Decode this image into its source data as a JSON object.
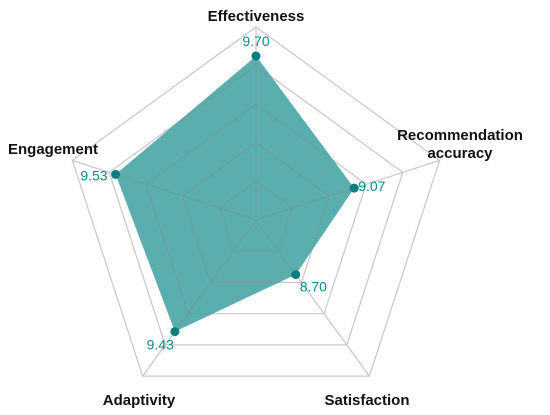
{
  "chart_data": {
    "type": "radar",
    "categories": [
      "Effectiveness",
      "Recommendation accuracy",
      "Satisfaction",
      "Adaptivity",
      "Engagement"
    ],
    "axis_label_lines": [
      [
        "Effectiveness"
      ],
      [
        "Recommendation",
        "accuracy"
      ],
      [
        "Satisfaction"
      ],
      [
        "Adaptivity"
      ],
      [
        "Engagement"
      ]
    ],
    "values": [
      9.7,
      9.07,
      8.7,
      9.43,
      9.53
    ],
    "value_labels": [
      "9.70",
      "9.07",
      "8.70",
      "9.43",
      "9.53"
    ],
    "range": [
      8.0,
      10.0
    ],
    "gridlines": [
      8.4,
      8.8,
      9.2,
      9.6,
      10.0
    ],
    "grid": true,
    "colors": {
      "fill": "#5aaeae",
      "marker": "#0e7d7d",
      "value_text": "#0e8a8a",
      "inner_grid": "#6d9e9e",
      "outer_grid": "#c8c8c8"
    }
  }
}
